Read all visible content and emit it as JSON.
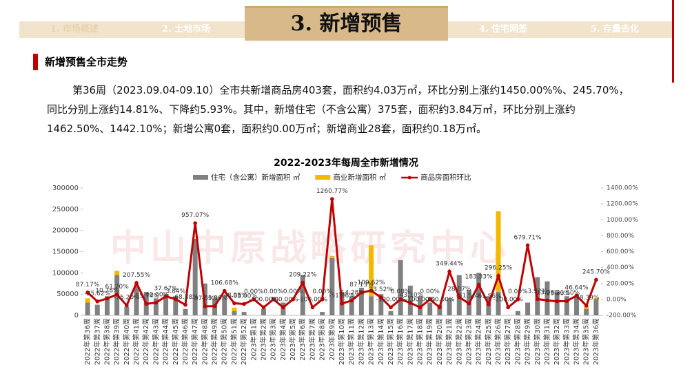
{
  "tabs": [
    "1. 市场概述",
    "2. 土地市场",
    "3. 新增预售",
    "4. 住宅网签",
    "5. 存量去化"
  ],
  "section_title": "新增预售全市走势",
  "paragraph": [
    "第36周（2023.09.04-09.10）全市共新增商品房403套，面积约4.03万㎡，环比分别上涨约1450.00%%、245.70%，",
    "同比分别上涨约14.81%、下降约5.93%。其中，新增住宅（不含公寓）375套，面积约3.84万㎡，环比分别上涨约",
    "1462.50%、1442.10%；新增公寓0套，面积约0.00万㎡；新增商业28套，面积约0.18万㎡。"
  ],
  "watermark": "中山中原战略研究中心",
  "chart_data": {
    "type": "bar",
    "title": "2022-2023年每周全市新增情况",
    "stacked": true,
    "categories": [
      "2022年第36周",
      "2022年第37周",
      "2022年第38周",
      "2022年第39周",
      "2022年第40周",
      "2022年第41周",
      "2022年第42周",
      "2022年第43周",
      "2022年第44周",
      "2022年第45周",
      "2022年第46周",
      "2022年第47周",
      "2022年第48周",
      "2022年第49周",
      "2022年第50周",
      "2022年第51周",
      "2022年第52周",
      "2023年第1周",
      "2023年第2周",
      "2023年第3周",
      "2023年第4周",
      "2023年第5周",
      "2023年第6周",
      "2023年第7周",
      "2023年第8周",
      "2023年第9周",
      "2023年第10周",
      "2023年第11周",
      "2023年第12周",
      "2023年第13周",
      "2023年第14周",
      "2023年第15周",
      "2023年第16周",
      "2023年第17周",
      "2023年第18周",
      "2023年第19周",
      "2023年第20周",
      "2023年第21周",
      "2023年第22周",
      "2023年第23周",
      "2023年第24周",
      "2023年第25周",
      "2023年第26周",
      "2023年第27周",
      "2023年第28周",
      "2023年第29周",
      "2023年第30周",
      "2023年第31周",
      "2023年第32周",
      "2023年第33周",
      "2023年第34周",
      "2023年第35周",
      "2023年第36周"
    ],
    "series": [
      {
        "name": "住宅（含公寓）新增面积 ㎡",
        "color": "#808080",
        "values": [
          30000,
          25000,
          45000,
          95000,
          20000,
          70000,
          55000,
          40000,
          50000,
          45000,
          15000,
          180000,
          75000,
          40000,
          45000,
          10000,
          8000,
          0,
          15000,
          0,
          30000,
          0,
          95000,
          0,
          8000,
          135000,
          55000,
          45000,
          65000,
          45000,
          50000,
          10000,
          130000,
          70000,
          45000,
          30000,
          25000,
          40000,
          95000,
          60000,
          100000,
          45000,
          55000,
          0,
          10000,
          30000,
          90000,
          80000,
          55000,
          45000,
          45000,
          15000,
          38000
        ]
      },
      {
        "name": "商业新增面积 ㎡",
        "color": "#f5b800",
        "values": [
          10000,
          0,
          0,
          10000,
          0,
          0,
          0,
          0,
          0,
          0,
          0,
          0,
          0,
          0,
          0,
          8000,
          0,
          0,
          0,
          0,
          0,
          0,
          0,
          0,
          0,
          5000,
          0,
          0,
          0,
          120000,
          0,
          0,
          0,
          0,
          0,
          0,
          0,
          0,
          0,
          0,
          0,
          0,
          190000,
          0,
          0,
          0,
          0,
          0,
          0,
          0,
          0,
          5000,
          2000
        ]
      },
      {
        "name": "商品房面积环比",
        "color": "#c00000",
        "type": "line",
        "axis": "y2",
        "values": [
          87.17,
          -25.62,
          10.78,
          61.2,
          -75.2,
          207.55,
          -55.74,
          -40,
          37.67,
          3.84,
          -68.38,
          957.07,
          -87.59,
          -83.96,
          106.68,
          -48.05,
          -58,
          0,
          -100,
          0,
          -100,
          0,
          209.22,
          -100,
          0,
          1260.77,
          -51.96,
          -14.28,
          87.13,
          109.62,
          23.52,
          -100,
          0,
          -43.1,
          -100,
          0,
          -100,
          349.44,
          28.07,
          -51.56,
          183.33,
          -61.56,
          296.25,
          -100,
          0,
          679.71,
          3.92,
          -13.06,
          -23.33,
          -20.5,
          46.64,
          -78.39,
          245.7
        ],
        "value_labels": [
          "87.17%",
          "-25.62%",
          "10.78%",
          "61.20%",
          "-75.20%",
          "207.55%",
          "-55.74%",
          "-40.00%",
          "37.67%",
          "3.84%",
          "-68.38%",
          "957.07%",
          "-87.59%",
          "-83.96%",
          "106.68%",
          "-48.05%",
          "-58.00%",
          "0.00%",
          "-100.00%",
          "0.00%",
          "-100.00%",
          "0.00%",
          "209.22%",
          "-100.00%",
          "0.00%",
          "1260.77%",
          "-51.96%",
          "-14.28%",
          "87.13%",
          "109.62%",
          "23.52%",
          "-100.00%",
          "0.00%",
          "-43.10%",
          "-100.00%",
          "0.00%",
          "-100.00%",
          "349.44%",
          "28.07%",
          "-51.56%",
          "183.33%",
          "-61.56%",
          "296.25%",
          "-100.00%",
          "0.00%",
          "679.71%",
          "3.92%",
          "-13.06%",
          "-23.33%",
          "-20.50%",
          "46.64%",
          "-78.39%",
          "245.70%"
        ]
      }
    ],
    "ylim": [
      0,
      300000
    ],
    "yticks": [
      0,
      50000,
      100000,
      150000,
      200000,
      250000,
      300000
    ],
    "y2lim": [
      -200,
      1400
    ],
    "y2ticks": [
      {
        "value": -200,
        "label": "-200.00%"
      },
      {
        "value": 0,
        "label": "0.00%"
      },
      {
        "value": 200,
        "label": "200.00%"
      },
      {
        "value": 400,
        "label": "400.00%"
      },
      {
        "value": 600,
        "label": "600.00%"
      },
      {
        "value": 800,
        "label": "800.00%"
      },
      {
        "value": 1000,
        "label": "1000.00%"
      },
      {
        "value": 1200,
        "label": "1200.00%"
      },
      {
        "value": 1400,
        "label": "1400.00%"
      }
    ],
    "legend": "top",
    "grid": false
  }
}
